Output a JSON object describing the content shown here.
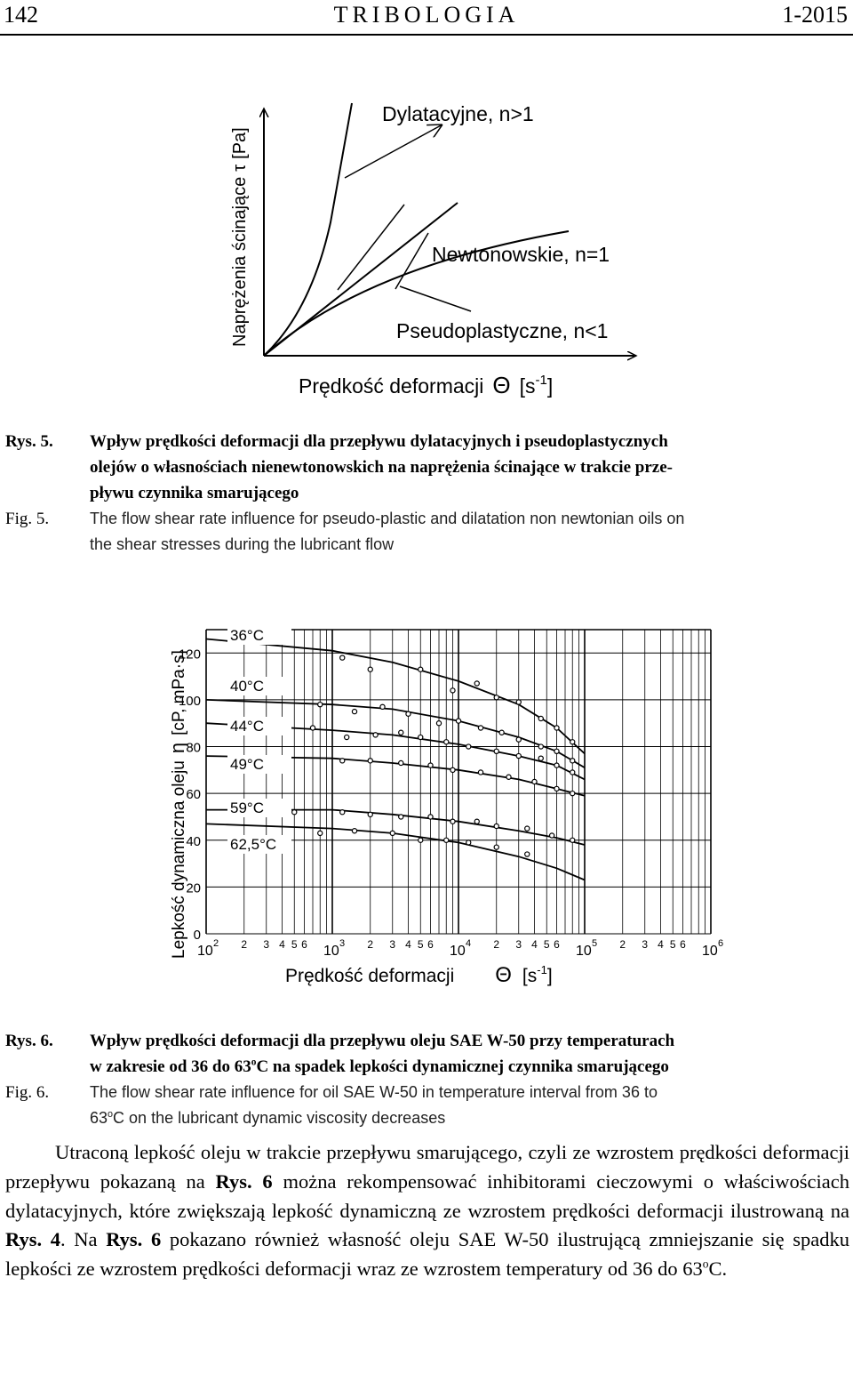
{
  "header": {
    "page_number": "142",
    "journal": "TRIBOLOGIA",
    "issue": "1-2015"
  },
  "fig5": {
    "y_axis_label": "Naprężenia ścinające",
    "y_axis_symbol": "τ",
    "y_axis_unit": "[Pa]",
    "x_axis_label": "Prędkość deformacji",
    "x_axis_symbol": "Θ",
    "x_axis_unit_open": "[s",
    "x_axis_unit_exp": "-1",
    "x_axis_unit_close": "]",
    "curve_labels": [
      "Dylatacyjne, n>1",
      "Newtonowskie, n=1",
      "Pseudoplastyczne, n<1"
    ]
  },
  "caption5": {
    "label_pl": "Rys. 5.",
    "text_pl_lines": [
      "Wpływ prędkości deformacji dla przepływu dylatacyjnych i pseudoplastycznych",
      "olejów o własnościach nienewtonowskich na naprężenia ścinające w trakcie prze-",
      "pływu czynnika smarującego"
    ],
    "label_en": "Fig. 5.",
    "text_en_lines": [
      "The flow shear rate influence for pseudo-plastic and dilatation non newtonian oils on",
      "the shear stresses during the lubricant flow"
    ]
  },
  "chart_data": {
    "type": "scatter",
    "x_scale": "log",
    "xlim": [
      100,
      1000000
    ],
    "ylim": [
      0,
      130
    ],
    "ylabel": "Lepkość dynamiczna oleju η [cP, mPa·s]",
    "ylabel_text": "Lepkość dynamiczna oleju",
    "ylabel_symbol": "η",
    "ylabel_unit": "[cP, mPa·s]",
    "xlabel": "Prędkość deformacji Θ [s-1]",
    "xlabel_text": "Prędkość deformacji",
    "xlabel_symbol": "Θ",
    "xlabel_unit_open": "[s",
    "xlabel_unit_exp": "-1",
    "xlabel_unit_close": "]",
    "y_ticks": [
      "0",
      "20",
      "40",
      "60",
      "80",
      "100",
      "120"
    ],
    "x_decades": [
      "10",
      "10",
      "10",
      "10",
      "10"
    ],
    "x_decade_exps": [
      "2",
      "3",
      "4",
      "5",
      "6"
    ],
    "x_minor_labels": [
      "2",
      "3",
      "4",
      "5",
      "6"
    ],
    "grid": true,
    "series": [
      {
        "name": "36°C",
        "curve": [
          [
            100,
            126
          ],
          [
            1000,
            121
          ],
          [
            3000,
            116
          ],
          [
            10000,
            108
          ],
          [
            30000,
            98
          ],
          [
            60000,
            88
          ],
          [
            100000,
            77
          ]
        ],
        "points": [
          [
            1200,
            118
          ],
          [
            2000,
            113
          ],
          [
            5000,
            113
          ],
          [
            9000,
            104
          ],
          [
            14000,
            107
          ],
          [
            20000,
            101
          ],
          [
            30000,
            99
          ],
          [
            45000,
            92
          ],
          [
            60000,
            88
          ],
          [
            80000,
            82
          ]
        ]
      },
      {
        "name": "40°C",
        "curve": [
          [
            100,
            100
          ],
          [
            1000,
            98
          ],
          [
            3000,
            96
          ],
          [
            10000,
            91
          ],
          [
            30000,
            84
          ],
          [
            60000,
            78
          ],
          [
            100000,
            71
          ]
        ],
        "points": [
          [
            800,
            98
          ],
          [
            1500,
            95
          ],
          [
            2500,
            97
          ],
          [
            4000,
            94
          ],
          [
            7000,
            90
          ],
          [
            10000,
            91
          ],
          [
            15000,
            88
          ],
          [
            22000,
            86
          ],
          [
            30000,
            83
          ],
          [
            45000,
            80
          ],
          [
            60000,
            78
          ],
          [
            80000,
            74
          ]
        ]
      },
      {
        "name": "44°C",
        "curve": [
          [
            100,
            90
          ],
          [
            1000,
            87
          ],
          [
            3000,
            85
          ],
          [
            10000,
            81
          ],
          [
            30000,
            76
          ],
          [
            60000,
            72
          ],
          [
            100000,
            66
          ]
        ],
        "points": [
          [
            700,
            88
          ],
          [
            1300,
            84
          ],
          [
            2200,
            85
          ],
          [
            3500,
            86
          ],
          [
            5000,
            84
          ],
          [
            8000,
            82
          ],
          [
            12000,
            80
          ],
          [
            20000,
            78
          ],
          [
            30000,
            76
          ],
          [
            45000,
            75
          ],
          [
            60000,
            72
          ],
          [
            80000,
            69
          ]
        ]
      },
      {
        "name": "49°C",
        "curve": [
          [
            100,
            76
          ],
          [
            1000,
            75
          ],
          [
            3000,
            73
          ],
          [
            10000,
            70
          ],
          [
            30000,
            66
          ],
          [
            60000,
            62
          ],
          [
            100000,
            59
          ]
        ],
        "points": [
          [
            1200,
            74
          ],
          [
            2000,
            74
          ],
          [
            3500,
            73
          ],
          [
            6000,
            72
          ],
          [
            9000,
            70
          ],
          [
            15000,
            69
          ],
          [
            25000,
            67
          ],
          [
            40000,
            65
          ],
          [
            60000,
            62
          ],
          [
            80000,
            60
          ]
        ]
      },
      {
        "name": "59°C",
        "curve": [
          [
            100,
            53
          ],
          [
            1000,
            53
          ],
          [
            3000,
            51
          ],
          [
            10000,
            48
          ],
          [
            30000,
            44
          ],
          [
            60000,
            41
          ],
          [
            100000,
            38
          ]
        ],
        "points": [
          [
            500,
            52
          ],
          [
            1200,
            52
          ],
          [
            2000,
            51
          ],
          [
            3500,
            50
          ],
          [
            6000,
            50
          ],
          [
            9000,
            48
          ],
          [
            14000,
            48
          ],
          [
            20000,
            46
          ],
          [
            35000,
            45
          ],
          [
            55000,
            42
          ],
          [
            80000,
            40
          ]
        ]
      },
      {
        "name": "62,5°C",
        "curve": [
          [
            100,
            47
          ],
          [
            1000,
            45
          ],
          [
            3000,
            43
          ],
          [
            10000,
            39
          ],
          [
            30000,
            33
          ],
          [
            60000,
            28
          ],
          [
            100000,
            23
          ]
        ],
        "points": [
          [
            800,
            43
          ],
          [
            1500,
            44
          ],
          [
            3000,
            43
          ],
          [
            5000,
            40
          ],
          [
            8000,
            40
          ],
          [
            12000,
            39
          ],
          [
            20000,
            37
          ],
          [
            35000,
            34
          ]
        ]
      }
    ]
  },
  "caption6": {
    "label_pl": "Rys. 6.",
    "text_pl_line1": "Wpływ prędkości deformacji dla przepływu oleju SAE W-50 przy temperaturach",
    "text_pl_line2_a": "w zakresie od 36 do 63",
    "text_pl_line2_sup": "o",
    "text_pl_line2_b": "C na spadek lepkości dynamicznej czynnika smarującego",
    "label_en": "Fig. 6.",
    "text_en_line1": "The flow shear rate influence for oil SAE W-50 in temperature interval from 36 to",
    "text_en_line2_a": "63",
    "text_en_line2_sup": "o",
    "text_en_line2_b": "C on the lubricant dynamic viscosity decreases"
  },
  "body": {
    "p1": "Utraconą lepkość oleju w trakcie przepływu smarującego, czyli ze wzrostem prędkości deformacji przepływu pokazaną na ",
    "ref1": "Rys. 6",
    "p2": " można rekompensować inhibitorami cieczowymi o właściwościach dylatacyjnych, które zwiększają lepkość dynamiczną ze wzrostem prędkości deformacji ilustrowaną na ",
    "ref2": "Rys. 4",
    "p3": ". Na ",
    "ref3": "Rys. 6",
    "p4": " pokazano również własność oleju SAE W-50 ilustrującą zmniejszanie się spadku lepkości ze wzrostem prędkości deformacji wraz ze wzrostem temperatury od 36 do 63",
    "sup": "o",
    "p5": "C."
  }
}
